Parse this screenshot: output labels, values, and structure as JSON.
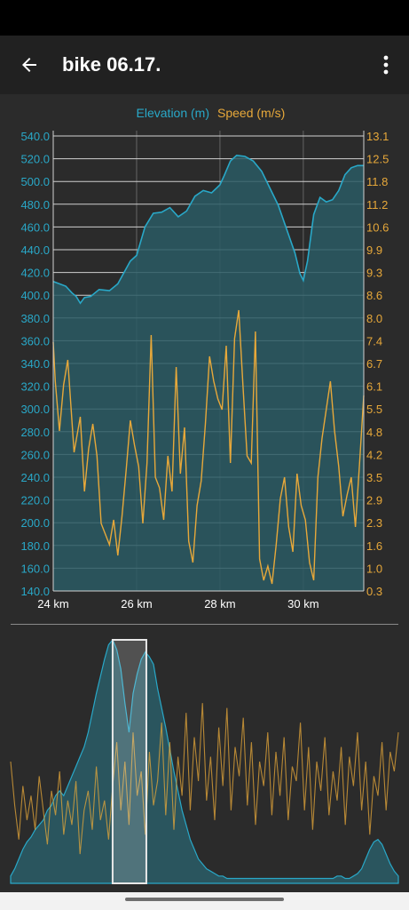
{
  "app": {
    "title": "bike 06.17.",
    "icons": {
      "back": "arrow-left-icon",
      "menu": "more-vertical-icon"
    }
  },
  "colors": {
    "elevation": "#29a8c8",
    "elevation_fill": "#2a5a64",
    "speed": "#e7a83a",
    "background": "#2b2b2b",
    "appbar": "#212121",
    "grid": "#d0d0d0"
  },
  "chart_data": [
    {
      "type": "line",
      "legend_position": "top-center",
      "grid": true,
      "x_unit": "km",
      "xlim": [
        24,
        31.45
      ],
      "x_ticks": [
        24,
        26,
        28,
        30
      ],
      "x_tick_labels": [
        "24 km",
        "26 km",
        "28 km",
        "30 km"
      ],
      "y_left_ticks": [
        "140.0",
        "160.0",
        "180.0",
        "200.0",
        "220.0",
        "240.0",
        "260.0",
        "280.0",
        "300.0",
        "320.0",
        "340.0",
        "360.0",
        "380.0",
        "400.0",
        "420.0",
        "440.0",
        "460.0",
        "480.0",
        "500.0",
        "520.0",
        "540.0"
      ],
      "y_right_ticks": [
        "0.3",
        "1.0",
        "1.6",
        "2.3",
        "2.9",
        "3.5",
        "4.2",
        "4.8",
        "5.5",
        "6.1",
        "6.7",
        "7.4",
        "8.0",
        "8.6",
        "9.3",
        "9.9",
        "10.6",
        "11.2",
        "11.8",
        "12.5",
        "13.1"
      ],
      "y_left_lim": [
        140,
        540
      ],
      "y_right_lim": [
        0.3,
        13.1
      ],
      "series": [
        {
          "name": "Elevation (m)",
          "axis": "left",
          "x": [
            24.0,
            24.3,
            24.45,
            24.55,
            24.65,
            24.75,
            24.9,
            25.1,
            25.35,
            25.55,
            25.85,
            26.0,
            26.2,
            26.4,
            26.6,
            26.8,
            27.0,
            27.2,
            27.4,
            27.6,
            27.8,
            28.0,
            28.1,
            28.25,
            28.4,
            28.6,
            28.8,
            29.0,
            29.2,
            29.4,
            29.6,
            29.8,
            29.92,
            30.0,
            30.1,
            30.25,
            30.4,
            30.55,
            30.7,
            30.85,
            31.0,
            31.15,
            31.3,
            31.45
          ],
          "y": [
            412,
            408,
            402,
            399,
            393,
            398,
            399,
            405,
            404,
            410,
            430,
            435,
            460,
            472,
            473,
            477,
            469,
            474,
            487,
            492,
            490,
            497,
            505,
            518,
            523,
            522,
            518,
            509,
            494,
            479,
            458,
            437,
            419,
            413,
            430,
            471,
            486,
            482,
            484,
            492,
            506,
            512,
            514,
            514
          ]
        },
        {
          "name": "Speed (m/s)",
          "axis": "right",
          "x": [
            24.0,
            24.05,
            24.15,
            24.25,
            24.35,
            24.5,
            24.65,
            24.75,
            24.85,
            24.95,
            25.05,
            25.15,
            25.25,
            25.35,
            25.45,
            25.55,
            25.65,
            25.75,
            25.85,
            25.95,
            26.05,
            26.15,
            26.25,
            26.35,
            26.45,
            26.55,
            26.65,
            26.75,
            26.85,
            26.95,
            27.05,
            27.15,
            27.25,
            27.35,
            27.45,
            27.55,
            27.65,
            27.75,
            27.85,
            27.95,
            28.05,
            28.15,
            28.25,
            28.35,
            28.45,
            28.55,
            28.65,
            28.75,
            28.85,
            28.95,
            29.05,
            29.15,
            29.25,
            29.35,
            29.45,
            29.55,
            29.65,
            29.75,
            29.85,
            29.95,
            30.05,
            30.15,
            30.25,
            30.35,
            30.45,
            30.55,
            30.65,
            30.75,
            30.85,
            30.95,
            31.05,
            31.15,
            31.25,
            31.35,
            31.45
          ],
          "y": [
            7.3,
            6.2,
            4.8,
            6.1,
            6.8,
            4.2,
            5.2,
            3.1,
            4.3,
            5.0,
            4.1,
            2.2,
            1.9,
            1.6,
            2.3,
            1.3,
            2.4,
            3.7,
            5.1,
            4.4,
            3.8,
            2.2,
            3.9,
            7.5,
            3.5,
            3.2,
            2.3,
            4.1,
            3.1,
            6.6,
            3.6,
            4.9,
            1.7,
            1.1,
            2.7,
            3.4,
            5.0,
            6.9,
            6.2,
            5.7,
            5.4,
            7.2,
            3.9,
            7.4,
            8.2,
            6.1,
            4.1,
            3.9,
            7.6,
            1.2,
            0.6,
            1.0,
            0.5,
            1.6,
            2.9,
            3.5,
            2.1,
            1.4,
            3.6,
            2.7,
            2.3,
            1.1,
            0.6,
            3.5,
            4.6,
            5.4,
            6.2,
            4.8,
            3.8,
            2.4,
            3.0,
            3.5,
            2.1,
            3.9,
            5.8
          ]
        }
      ]
    },
    {
      "type": "area",
      "grid": false,
      "xlim": [
        0,
        1
      ],
      "selection_range": [
        0.263,
        0.35
      ],
      "elevation_profile": [
        0.03,
        0.06,
        0.1,
        0.14,
        0.17,
        0.19,
        0.22,
        0.24,
        0.26,
        0.3,
        0.32,
        0.36,
        0.38,
        0.36,
        0.4,
        0.44,
        0.48,
        0.52,
        0.56,
        0.62,
        0.7,
        0.78,
        0.85,
        0.92,
        0.98,
        1.0,
        0.96,
        0.88,
        0.74,
        0.62,
        0.78,
        0.86,
        0.92,
        0.95,
        0.93,
        0.9,
        0.8,
        0.72,
        0.64,
        0.55,
        0.46,
        0.38,
        0.3,
        0.24,
        0.18,
        0.14,
        0.1,
        0.08,
        0.06,
        0.05,
        0.04,
        0.03,
        0.03,
        0.02,
        0.02,
        0.02,
        0.02,
        0.02,
        0.02,
        0.02,
        0.02,
        0.02,
        0.02,
        0.02,
        0.02,
        0.02,
        0.02,
        0.02,
        0.02,
        0.02,
        0.02,
        0.02,
        0.02,
        0.02,
        0.02,
        0.02,
        0.02,
        0.02,
        0.02,
        0.02,
        0.03,
        0.03,
        0.02,
        0.02,
        0.03,
        0.04,
        0.06,
        0.1,
        0.14,
        0.17,
        0.18,
        0.16,
        0.12,
        0.08,
        0.05,
        0.03
      ],
      "speed_profile": [
        0.5,
        0.32,
        0.18,
        0.4,
        0.26,
        0.36,
        0.22,
        0.44,
        0.3,
        0.16,
        0.38,
        0.28,
        0.46,
        0.2,
        0.34,
        0.24,
        0.42,
        0.12,
        0.3,
        0.38,
        0.22,
        0.48,
        0.26,
        0.34,
        0.18,
        0.4,
        0.58,
        0.3,
        0.5,
        0.24,
        0.62,
        0.36,
        0.46,
        0.2,
        0.54,
        0.32,
        0.42,
        0.66,
        0.28,
        0.58,
        0.22,
        0.52,
        0.36,
        0.7,
        0.3,
        0.6,
        0.42,
        0.74,
        0.34,
        0.52,
        0.26,
        0.64,
        0.4,
        0.72,
        0.3,
        0.56,
        0.44,
        0.68,
        0.32,
        0.58,
        0.24,
        0.5,
        0.4,
        0.62,
        0.28,
        0.54,
        0.36,
        0.6,
        0.26,
        0.48,
        0.42,
        0.66,
        0.3,
        0.56,
        0.22,
        0.5,
        0.38,
        0.6,
        0.28,
        0.46,
        0.34,
        0.56,
        0.24,
        0.52,
        0.4,
        0.62,
        0.3,
        0.5,
        0.2,
        0.44,
        0.36,
        0.58,
        0.3,
        0.54,
        0.46,
        0.62
      ]
    }
  ]
}
